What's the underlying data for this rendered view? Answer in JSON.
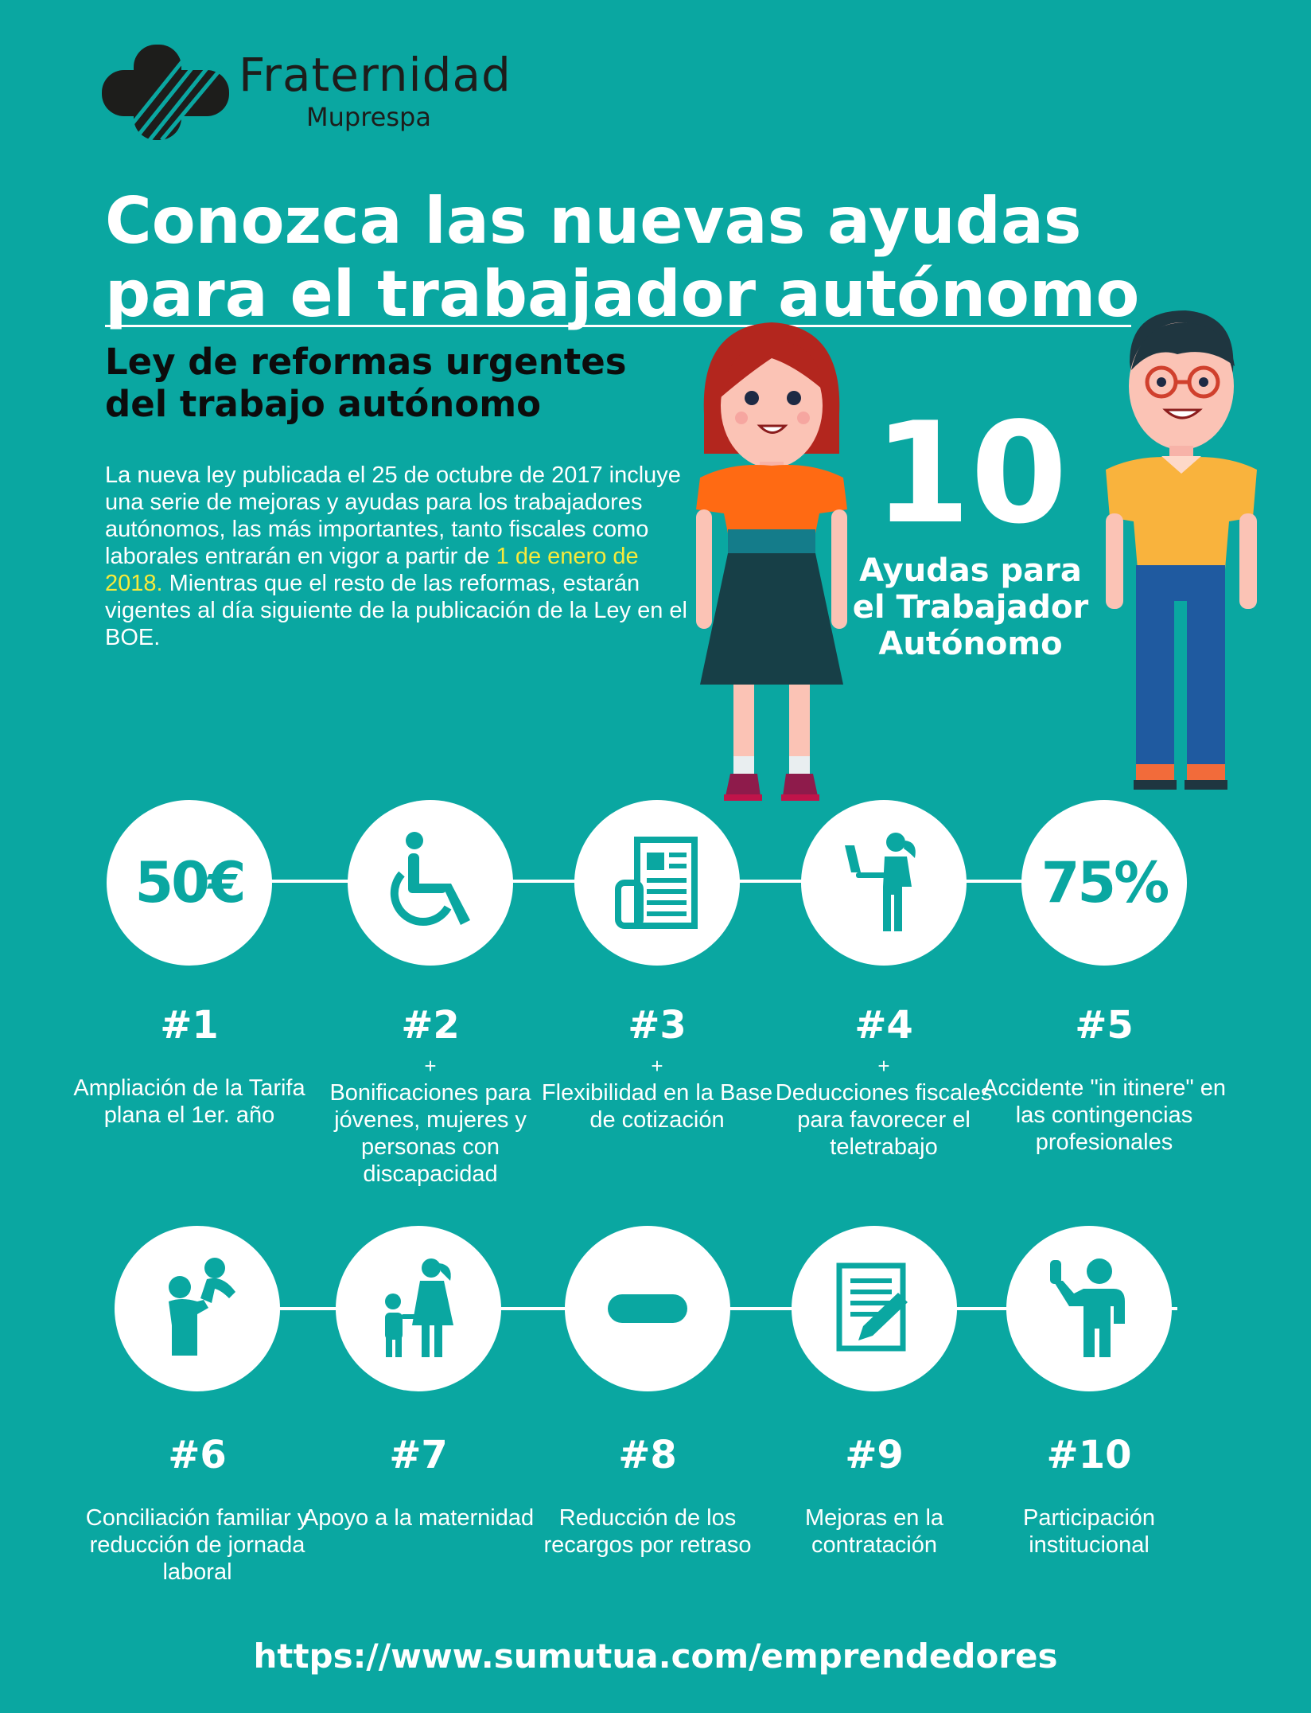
{
  "brand": {
    "name": "Fraternidad",
    "sub": "Muprespa"
  },
  "title": "Conozca las nuevas ayudas para el trabajador autónomo",
  "subtitle": "Ley de reformas urgentes del trabajo autónomo",
  "intro": {
    "before": "La nueva ley publicada el 25 de octubre de 2017 incluye una serie de mejoras y ayudas para los trabajadores autónomos, las más importantes, tanto fiscales como laborales entrarán en vigor a partir de ",
    "highlight": "1 de enero de 2018.",
    "after": " Mientras que el resto de las reformas, estarán vigentes al día siguiente de la publicación de la Ley en el BOE."
  },
  "count": {
    "number": "10",
    "label": "Ayudas para el Trabajador Autónomo"
  },
  "aids": [
    {
      "num": "#1",
      "plus": "",
      "desc": "Ampliación de la Tarifa plana el 1er. año",
      "circle_text": "50€",
      "icon": "euro-amount"
    },
    {
      "num": "#2",
      "plus": "+",
      "desc": "Bonificaciones para jóvenes, mujeres y personas con discapacidad",
      "circle_text": "",
      "icon": "wheelchair-icon"
    },
    {
      "num": "#3",
      "plus": "+",
      "desc": "Flexibilidad en la Base de cotización",
      "circle_text": "",
      "icon": "document-icon"
    },
    {
      "num": "#4",
      "plus": "+",
      "desc": "Deducciones fiscales para favorecer el teletrabajo",
      "circle_text": "",
      "icon": "telework-icon"
    },
    {
      "num": "#5",
      "plus": "",
      "desc": "Accidente \"in itinere\" en las contingencias profesionales",
      "circle_text": "75%",
      "icon": "percent-amount"
    },
    {
      "num": "#6",
      "plus": "",
      "desc": "Conciliación familiar y reducción de jornada laboral",
      "circle_text": "",
      "icon": "parent-child-icon"
    },
    {
      "num": "#7",
      "plus": "",
      "desc": "Apoyo a la maternidad",
      "circle_text": "",
      "icon": "mother-child-icon"
    },
    {
      "num": "#8",
      "plus": "",
      "desc": "Reducción de los recargos por retraso",
      "circle_text": "",
      "icon": "minus-icon"
    },
    {
      "num": "#9",
      "plus": "",
      "desc": "Mejoras en la contratación",
      "circle_text": "",
      "icon": "contract-icon"
    },
    {
      "num": "#10",
      "plus": "",
      "desc": "Participación institucional",
      "circle_text": "",
      "icon": "raised-hand-person-icon"
    }
  ],
  "url": "https://www.sumutua.com/emprendedores"
}
